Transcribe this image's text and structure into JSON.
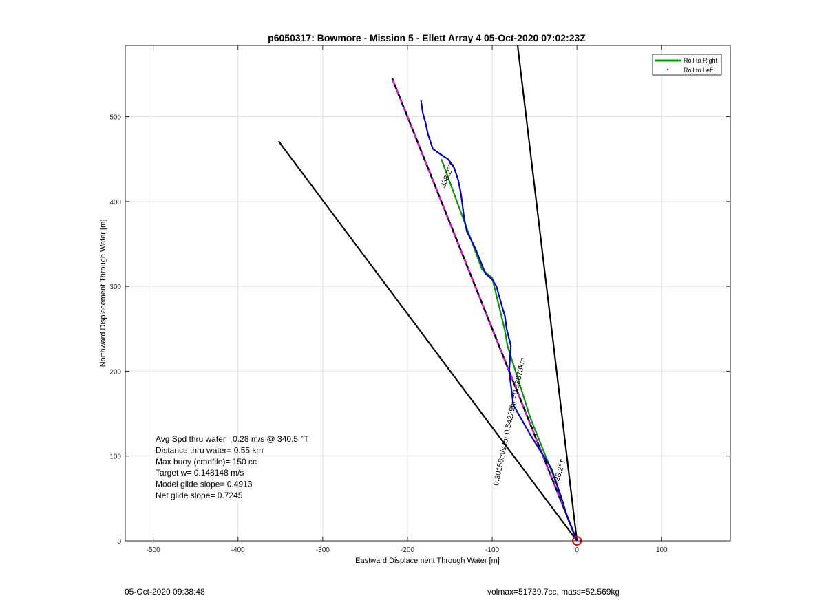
{
  "footer": {
    "left": "05-Oct-2020 09:38:48",
    "right": "volmax=51739.7cc, mass=52.569kg"
  },
  "chart_data": {
    "type": "line",
    "title": "p6050317: Bowmore - Mission 5 - Ellett Array 4 05-Oct-2020 07:02:23Z",
    "xlabel": "Eastward Displacement Through Water [m]",
    "ylabel": "Northward Displacement Through Water [m]",
    "xlim": [
      -533,
      181
    ],
    "ylim": [
      0,
      584
    ],
    "xticks": [
      -500,
      -400,
      -300,
      -200,
      -100,
      0,
      100
    ],
    "yticks": [
      0,
      100,
      200,
      300,
      400,
      500
    ],
    "grid": true,
    "legend": {
      "location": "top-right",
      "entries": [
        {
          "label": "Roll to Right",
          "color": "#009900",
          "style": "line"
        },
        {
          "label": "Roll to Left",
          "color": "#ff0000",
          "style": "dot"
        }
      ]
    },
    "annotations": [
      {
        "text": "Avg Spd thru water=  0.28 m/s @ 340.5 °T"
      },
      {
        "text": "Distance thru water=  0.55 km"
      },
      {
        "text": "Max buoy (cmdfile)= 150 cc"
      },
      {
        "text": "Target w= 0.148148 m/s"
      },
      {
        "text": "Model glide slope= 0.4913"
      },
      {
        "text": "Net glide slope= 0.7245"
      }
    ],
    "line_labels": [
      {
        "text": "338.2°T",
        "x": -150,
        "y": 430,
        "angle": -68
      },
      {
        "text": "338.2°T",
        "x": -18,
        "y": 80,
        "angle": -72
      },
      {
        "text": "0.30156m/s for 0.54229hr =0.58873km",
        "x": -77,
        "y": 140,
        "angle": -78
      }
    ],
    "series": [
      {
        "kind": "black_line",
        "x": [
          0,
          -352
        ],
        "y": [
          0,
          471
        ]
      },
      {
        "kind": "black_line",
        "x": [
          0,
          -70
        ],
        "y": [
          0,
          584
        ]
      },
      {
        "kind": "black_dashed_track",
        "x": [
          0,
          -218
        ],
        "y": [
          0,
          545
        ]
      },
      {
        "kind": "green_track",
        "x": [
          0,
          -12,
          -25,
          -35,
          -55,
          -82,
          -85,
          -100,
          -112,
          -135,
          -160
        ],
        "y": [
          0,
          30,
          70,
          95,
          145,
          230,
          248,
          310,
          320,
          382,
          450
        ]
      },
      {
        "kind": "blue_track",
        "x": [
          0,
          -12,
          -18,
          -30,
          -55,
          -75,
          -80,
          -78,
          -83,
          -85,
          -88,
          -95,
          -100,
          -108,
          -120,
          -130,
          -133,
          -135,
          -137,
          -140,
          -145,
          -152,
          -160,
          -170,
          -176,
          -178,
          -182,
          -184
        ],
        "y": [
          0,
          30,
          50,
          85,
          125,
          160,
          200,
          230,
          250,
          265,
          275,
          300,
          308,
          315,
          345,
          365,
          380,
          395,
          410,
          425,
          440,
          450,
          455,
          462,
          480,
          490,
          505,
          519
        ]
      }
    ],
    "end_marker": {
      "x": 0,
      "y": 0,
      "color": "#ff0000"
    }
  }
}
